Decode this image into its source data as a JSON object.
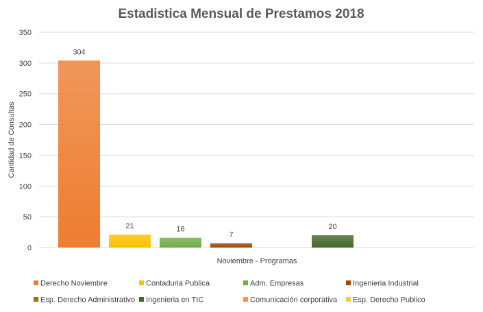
{
  "chart_data": {
    "type": "bar",
    "title": "Estadistica Mensual de Prestamos 2018",
    "xlabel": "Noviembre - Programas",
    "ylabel": "Cantidad de Consultas",
    "ylim": [
      0,
      350
    ],
    "yticks": [
      0,
      50,
      100,
      150,
      200,
      250,
      300,
      350
    ],
    "grid": true,
    "legend_position": "bottom",
    "categories": [
      "Noviembre - Programas"
    ],
    "series": [
      {
        "name": "Derecho Noviembre",
        "values": [
          304
        ],
        "color": "#ED7D31"
      },
      {
        "name": "Contaduria Publica",
        "values": [
          21
        ],
        "color": "#FFC000"
      },
      {
        "name": "Adm. Empresas",
        "values": [
          16
        ],
        "color": "#70AD47"
      },
      {
        "name": "Ingenieria Industrial",
        "values": [
          7
        ],
        "color": "#9E480E"
      },
      {
        "name": "Esp. Derecho Administrativo",
        "values": [
          null
        ],
        "color": "#997300"
      },
      {
        "name": "Ingenieria en TIC",
        "values": [
          20
        ],
        "color": "#43682B"
      },
      {
        "name": "Comunicación corporativa",
        "values": [
          null
        ],
        "color": "#F1975A"
      },
      {
        "name": "Esp. Derecho Publico",
        "values": [
          null
        ],
        "color": "#FFCD33"
      }
    ]
  }
}
